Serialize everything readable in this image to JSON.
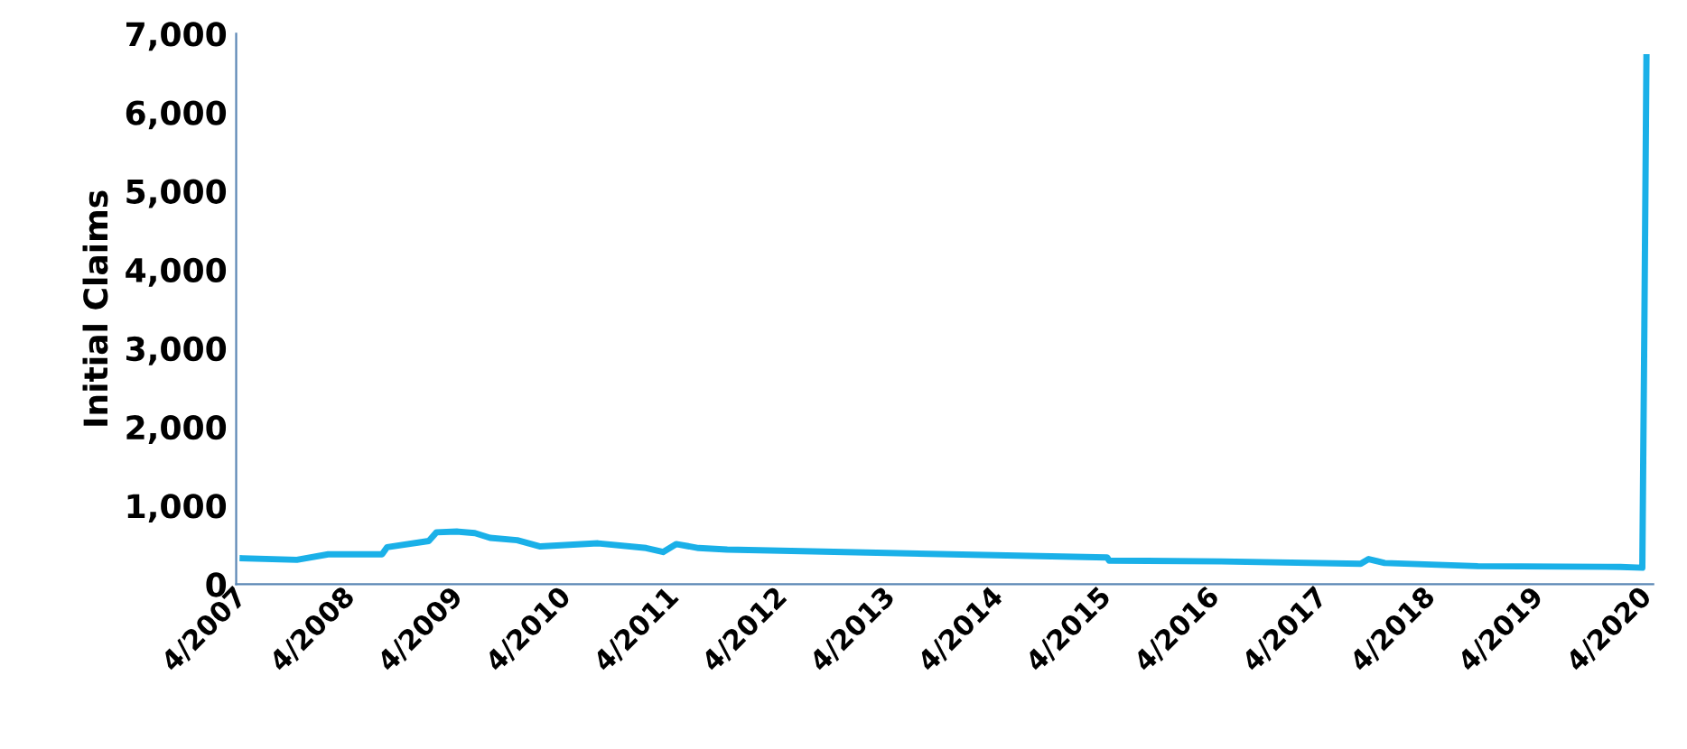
{
  "chart_data": {
    "type": "line",
    "ylabel": "Initial Claims",
    "x": [
      "2007-04-01",
      "2007-10-01",
      "2008-01-15",
      "2008-07-15",
      "2008-08-01",
      "2008-12-20",
      "2009-01-15",
      "2009-03-25",
      "2009-05-25",
      "2009-07-15",
      "2009-10-15",
      "2010-01-01",
      "2010-07-15",
      "2010-12-25",
      "2011-02-20",
      "2011-04-05",
      "2011-06-20",
      "2011-09-25",
      "2015-04-01",
      "2015-04-08",
      "2016-04-20",
      "2017-08-05",
      "2017-09-01",
      "2017-10-25",
      "2018-09-05",
      "2019-12-31",
      "2020-03-14",
      "2020-03-21",
      "2020-03-28"
    ],
    "series": [
      {
        "color": "#1ab0e8",
        "values": [
          330,
          310,
          380,
          380,
          470,
          550,
          660,
          670,
          650,
          590,
          560,
          480,
          520,
          460,
          410,
          510,
          460,
          440,
          340,
          300,
          290,
          260,
          320,
          270,
          230,
          220,
          210,
          3300,
          6700
        ]
      }
    ],
    "xlim": [
      "2007-03-10",
      "2020-04-20"
    ],
    "xticks": [
      {
        "value": "2007-04-01",
        "label": "4/2007"
      },
      {
        "value": "2008-04-01",
        "label": "4/2008"
      },
      {
        "value": "2009-04-01",
        "label": "4/2009"
      },
      {
        "value": "2010-04-01",
        "label": "4/2010"
      },
      {
        "value": "2011-04-01",
        "label": "4/2011"
      },
      {
        "value": "2012-04-01",
        "label": "4/2012"
      },
      {
        "value": "2013-04-01",
        "label": "4/2013"
      },
      {
        "value": "2014-04-01",
        "label": "4/2014"
      },
      {
        "value": "2015-04-01",
        "label": "4/2015"
      },
      {
        "value": "2016-04-01",
        "label": "4/2016"
      },
      {
        "value": "2017-04-01",
        "label": "4/2017"
      },
      {
        "value": "2018-04-01",
        "label": "4/2018"
      },
      {
        "value": "2019-04-01",
        "label": "4/2019"
      },
      {
        "value": "2020-04-01",
        "label": "4/2020"
      }
    ],
    "ylim": [
      0,
      7000
    ],
    "yticks": [
      {
        "value": 0,
        "label": "0"
      },
      {
        "value": 1000,
        "label": "1,000"
      },
      {
        "value": 2000,
        "label": "2,000"
      },
      {
        "value": 3000,
        "label": "3,000"
      },
      {
        "value": 4000,
        "label": "4,000"
      },
      {
        "value": 5000,
        "label": "5,000"
      },
      {
        "value": 6000,
        "label": "6,000"
      },
      {
        "value": 7000,
        "label": "7,000"
      }
    ],
    "grid": false,
    "legend": false,
    "marker": "none",
    "line_style": "solid"
  }
}
